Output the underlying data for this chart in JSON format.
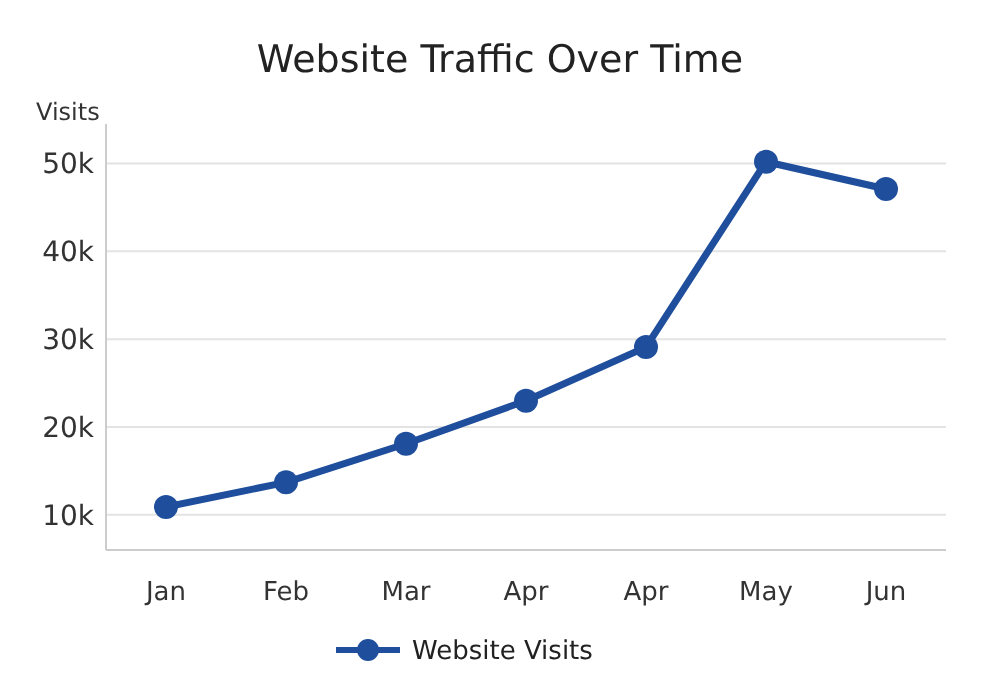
{
  "chart_data": {
    "type": "line",
    "title": "Website Traffic Over Time",
    "ylabel": "Visits",
    "categories": [
      "Jan",
      "Feb",
      "Mar",
      "Apr",
      "Apr",
      "May",
      "Jun"
    ],
    "series": [
      {
        "name": "Website Visits",
        "color": "#1f4e9c",
        "values": [
          10900,
          13700,
          18100,
          23000,
          29100,
          50200,
          47100
        ]
      }
    ],
    "ylim": [
      6000,
      54500
    ],
    "yticks": [
      {
        "value": 10000,
        "label": "10k"
      },
      {
        "value": 20000,
        "label": "20k"
      },
      {
        "value": 30000,
        "label": "30k"
      },
      {
        "value": 40000,
        "label": "40k"
      },
      {
        "value": 50000,
        "label": "50k"
      }
    ],
    "grid": "y",
    "legend": "bottom",
    "marker": "circle",
    "line_style": "solid"
  }
}
